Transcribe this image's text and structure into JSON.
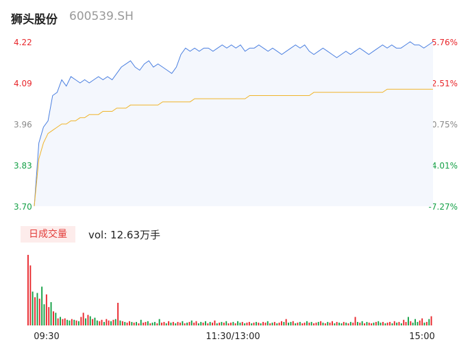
{
  "header": {
    "name": "狮头股份",
    "code": "600539.SH"
  },
  "volume": {
    "tag": "日成交量",
    "label": "vol: 12.63万手"
  },
  "colors": {
    "up": "#e8262b",
    "down": "#14a046",
    "flat": "#888888",
    "price_line": "#4a7fe0",
    "avg_line": "#f0b429",
    "area_fill": "#f4f7fd"
  },
  "chart_data": [
    {
      "type": "line",
      "title": "",
      "price_ticks": [
        "4.22",
        "4.09",
        "3.96",
        "3.83",
        "3.70"
      ],
      "pct_ticks": [
        "5.76%",
        "2.51%",
        "-0.75%",
        "-4.01%",
        "-7.27%"
      ],
      "ylim": [
        3.7,
        4.22
      ],
      "x_labels": [
        "09:30",
        "11:30/13:00",
        "15:00"
      ],
      "series": [
        {
          "role": "price",
          "values": [
            3.7,
            3.9,
            3.95,
            3.97,
            4.05,
            4.06,
            4.1,
            4.08,
            4.11,
            4.1,
            4.09,
            4.1,
            4.09,
            4.1,
            4.11,
            4.1,
            4.11,
            4.1,
            4.12,
            4.14,
            4.15,
            4.16,
            4.14,
            4.13,
            4.15,
            4.16,
            4.14,
            4.15,
            4.14,
            4.13,
            4.12,
            4.14,
            4.18,
            4.2,
            4.19,
            4.2,
            4.19,
            4.2,
            4.2,
            4.19,
            4.2,
            4.21,
            4.2,
            4.21,
            4.2,
            4.21,
            4.19,
            4.2,
            4.2,
            4.21,
            4.2,
            4.19,
            4.2,
            4.19,
            4.18,
            4.19,
            4.2,
            4.21,
            4.2,
            4.21,
            4.19,
            4.18,
            4.19,
            4.2,
            4.19,
            4.18,
            4.17,
            4.18,
            4.19,
            4.18,
            4.19,
            4.2,
            4.19,
            4.18,
            4.19,
            4.2,
            4.21,
            4.2,
            4.21,
            4.2,
            4.2,
            4.21,
            4.22,
            4.21,
            4.21,
            4.2,
            4.21,
            4.22
          ],
          "description": ""
        },
        {
          "role": "average",
          "values": [
            3.7,
            3.85,
            3.9,
            3.93,
            3.94,
            3.95,
            3.96,
            3.96,
            3.97,
            3.97,
            3.98,
            3.98,
            3.99,
            3.99,
            3.99,
            4.0,
            4.0,
            4.0,
            4.01,
            4.01,
            4.01,
            4.02,
            4.02,
            4.02,
            4.02,
            4.02,
            4.02,
            4.02,
            4.03,
            4.03,
            4.03,
            4.03,
            4.03,
            4.03,
            4.03,
            4.04,
            4.04,
            4.04,
            4.04,
            4.04,
            4.04,
            4.04,
            4.04,
            4.04,
            4.04,
            4.04,
            4.04,
            4.05,
            4.05,
            4.05,
            4.05,
            4.05,
            4.05,
            4.05,
            4.05,
            4.05,
            4.05,
            4.05,
            4.05,
            4.05,
            4.05,
            4.06,
            4.06,
            4.06,
            4.06,
            4.06,
            4.06,
            4.06,
            4.06,
            4.06,
            4.06,
            4.06,
            4.06,
            4.06,
            4.06,
            4.06,
            4.06,
            4.07,
            4.07,
            4.07,
            4.07,
            4.07,
            4.07,
            4.07,
            4.07,
            4.07,
            4.07,
            4.07
          ]
        }
      ]
    },
    {
      "type": "bar",
      "title": "",
      "values": [
        100,
        85,
        48,
        40,
        46,
        38,
        55,
        30,
        44,
        26,
        33,
        20,
        18,
        10,
        12,
        9,
        10,
        8,
        7,
        9,
        8,
        7,
        6,
        12,
        18,
        10,
        15,
        13,
        9,
        11,
        7,
        6,
        8,
        5,
        9,
        7,
        6,
        8,
        9,
        32,
        7,
        6,
        5,
        4,
        6,
        5,
        4,
        5,
        3,
        8,
        4,
        5,
        6,
        3,
        4,
        5,
        3,
        9,
        4,
        5,
        3,
        6,
        4,
        5,
        3,
        5,
        4,
        6,
        3,
        4,
        5,
        7,
        4,
        6,
        3,
        5,
        4,
        6,
        3,
        5,
        4,
        7,
        3,
        4,
        5,
        4,
        6,
        3,
        4,
        5,
        3,
        6,
        4,
        5,
        3,
        4,
        5,
        3,
        4,
        5,
        4,
        3,
        5,
        4,
        6,
        3,
        4,
        5,
        3,
        4,
        6,
        5,
        9,
        4,
        5,
        6,
        3,
        4,
        5,
        3,
        4,
        6,
        4,
        5,
        3,
        4,
        5,
        6,
        4,
        3,
        5,
        4,
        6,
        3,
        5,
        4,
        3,
        5,
        4,
        3,
        5,
        4,
        12,
        5,
        4,
        6,
        3,
        5,
        4,
        3,
        4,
        5,
        6,
        4,
        5,
        3,
        4,
        5,
        3,
        6,
        4,
        5,
        3,
        8,
        5,
        12,
        6,
        4,
        9,
        5,
        7,
        10,
        4,
        5,
        9,
        13
      ],
      "colors_seq": "rrgrgrggrrgrgrgrrggrgrgrrgrgrggrrgrrgrgrgrgrrgrgrgrrgrggrgrrgrgrgrrgrgrgrrggrgrgrrgrgrgrrgrggrgrrgrgrgrrgrgrgrrgrggrgrgrrgrgrrgrgrgrrgrggrgrgrrgrgrgrrgrggrgrrgrgrgrrgrgggrrgrgrrgrrg",
      "ylim": [
        0,
        100
      ]
    }
  ]
}
